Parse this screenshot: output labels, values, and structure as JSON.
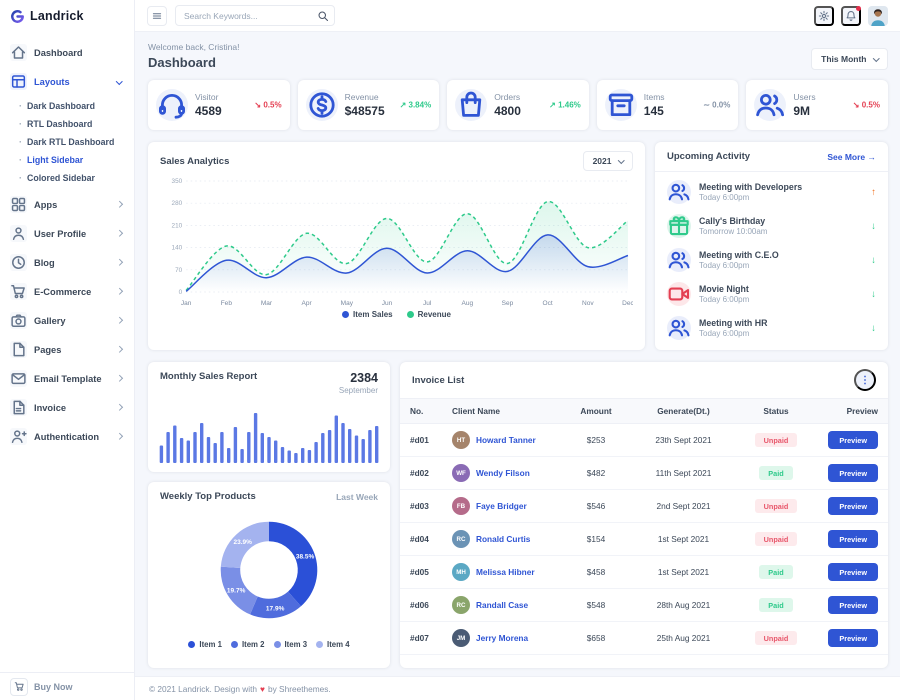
{
  "brand": {
    "name": "Landrick"
  },
  "topbar": {
    "search_placeholder": "Search Keywords..."
  },
  "header": {
    "welcome": "Welcome back, Cristina!",
    "title": "Dashboard",
    "period": "This Month"
  },
  "sidebar": {
    "items": [
      {
        "label": "Dashboard",
        "icon": "home"
      },
      {
        "label": "Layouts",
        "icon": "layout",
        "active": true,
        "expanded": true,
        "children": [
          {
            "label": "Dark Dashboard"
          },
          {
            "label": "RTL Dashboard"
          },
          {
            "label": "Dark RTL Dashboard"
          },
          {
            "label": "Light Sidebar",
            "active": true
          },
          {
            "label": "Colored Sidebar"
          }
        ]
      },
      {
        "label": "Apps",
        "icon": "grid",
        "arrow": true
      },
      {
        "label": "User Profile",
        "icon": "user",
        "arrow": true
      },
      {
        "label": "Blog",
        "icon": "clock",
        "arrow": true
      },
      {
        "label": "E-Commerce",
        "icon": "cart",
        "arrow": true
      },
      {
        "label": "Gallery",
        "icon": "camera",
        "arrow": true
      },
      {
        "label": "Pages",
        "icon": "file",
        "arrow": true
      },
      {
        "label": "Email Template",
        "icon": "mail",
        "arrow": true
      },
      {
        "label": "Invoice",
        "icon": "file-text",
        "arrow": true
      },
      {
        "label": "Authentication",
        "icon": "user-plus",
        "arrow": true
      }
    ],
    "buy_now": "Buy Now"
  },
  "stats": [
    {
      "label": "Visitor",
      "value": "4589",
      "change": "0.5%",
      "trend": "down",
      "icon": "headset"
    },
    {
      "label": "Revenue",
      "value": "$48575",
      "change": "3.84%",
      "trend": "up",
      "icon": "dollar"
    },
    {
      "label": "Orders",
      "value": "4800",
      "change": "1.46%",
      "trend": "up",
      "icon": "bag"
    },
    {
      "label": "Items",
      "value": "145",
      "change": "0.0%",
      "trend": "flat",
      "icon": "box"
    },
    {
      "label": "Users",
      "value": "9M",
      "change": "0.5%",
      "trend": "down",
      "icon": "users"
    }
  ],
  "chart_data": [
    {
      "type": "line",
      "title": "Sales Analytics",
      "year_selector": "2021",
      "x": [
        "Jan",
        "Feb",
        "Mar",
        "Apr",
        "May",
        "Jun",
        "Jul",
        "Aug",
        "Sep",
        "Oct",
        "Nov",
        "Dec"
      ],
      "series": [
        {
          "name": "Item Sales",
          "color": "#2f55d4",
          "style": "solid",
          "values": [
            2,
            100,
            45,
            110,
            60,
            138,
            60,
            130,
            65,
            180,
            80,
            115
          ]
        },
        {
          "name": "Revenue",
          "color": "#2eca8b",
          "style": "dashed",
          "values": [
            5,
            145,
            55,
            185,
            90,
            232,
            95,
            247,
            90,
            285,
            140,
            225
          ]
        }
      ],
      "ylim": [
        0,
        350
      ],
      "yticks": [
        0,
        70,
        140,
        210,
        280,
        350
      ],
      "grid": true,
      "legend_position": "bottom"
    },
    {
      "type": "bar",
      "title": "Monthly Sales Report",
      "value": "2384",
      "subtitle": "September",
      "values": [
        35,
        62,
        75,
        50,
        45,
        62,
        80,
        52,
        40,
        62,
        30,
        72,
        28,
        62,
        100,
        60,
        52,
        45,
        32,
        25,
        20,
        30,
        26,
        42,
        60,
        66,
        95,
        80,
        68,
        55,
        48,
        66,
        74
      ],
      "ylim": [
        0,
        100
      ]
    },
    {
      "type": "donut",
      "title": "Weekly Top Products",
      "subtitle": "Last Week",
      "labels": [
        "Item 1",
        "Item 2",
        "Item 3",
        "Item 4"
      ],
      "values": [
        38.5,
        17.9,
        19.7,
        23.9
      ],
      "colors": [
        "#2b50d7",
        "#4f6cdd",
        "#7a8fe6",
        "#a4b3ef"
      ]
    }
  ],
  "activity": {
    "title": "Upcoming Activity",
    "see_more": "See More →",
    "items": [
      {
        "title": "Meeting with Developers",
        "time": "Today 6:00pm",
        "icon": "people",
        "tint": "blue",
        "arrow": "up"
      },
      {
        "title": "Cally's Birthday",
        "time": "Tomorrow 10:00am",
        "icon": "gift",
        "tint": "green",
        "arrow": "down"
      },
      {
        "title": "Meeting with C.E.O",
        "time": "Today 6:00pm",
        "icon": "people",
        "tint": "blue",
        "arrow": "down"
      },
      {
        "title": "Movie Night",
        "time": "Today 6:00pm",
        "icon": "video",
        "tint": "red",
        "arrow": "down"
      },
      {
        "title": "Meeting with HR",
        "time": "Today 6:00pm",
        "icon": "people",
        "tint": "blue",
        "arrow": "down"
      }
    ]
  },
  "invoice": {
    "title": "Invoice List",
    "headers": [
      "No.",
      "Client Name",
      "Amount",
      "Generate(Dt.)",
      "Status",
      "Preview"
    ],
    "preview_label": "Preview",
    "rows": [
      {
        "no": "#d01",
        "name": "Howard Tanner",
        "amount": "$253",
        "date": "23th Sept 2021",
        "status": "Unpaid"
      },
      {
        "no": "#d02",
        "name": "Wendy Filson",
        "amount": "$482",
        "date": "11th Sept 2021",
        "status": "Paid"
      },
      {
        "no": "#d03",
        "name": "Faye Bridger",
        "amount": "$546",
        "date": "2nd Sept 2021",
        "status": "Unpaid"
      },
      {
        "no": "#d04",
        "name": "Ronald Curtis",
        "amount": "$154",
        "date": "1st Sept 2021",
        "status": "Unpaid"
      },
      {
        "no": "#d05",
        "name": "Melissa Hibner",
        "amount": "$458",
        "date": "1st Sept 2021",
        "status": "Paid"
      },
      {
        "no": "#d06",
        "name": "Randall Case",
        "amount": "$548",
        "date": "28th Aug 2021",
        "status": "Paid"
      },
      {
        "no": "#d07",
        "name": "Jerry Morena",
        "amount": "$658",
        "date": "25th Aug 2021",
        "status": "Unpaid"
      }
    ]
  },
  "footer": {
    "prefix": "© 2021 Landrick. Design with",
    "heart": "♥",
    "suffix": "by Shreethemes."
  },
  "colors": {
    "primary": "#2f55d4",
    "success": "#2eca8b",
    "danger": "#e43f52",
    "warning": "#f17425",
    "muted": "#8492a6",
    "bar": "#5b78e4"
  }
}
